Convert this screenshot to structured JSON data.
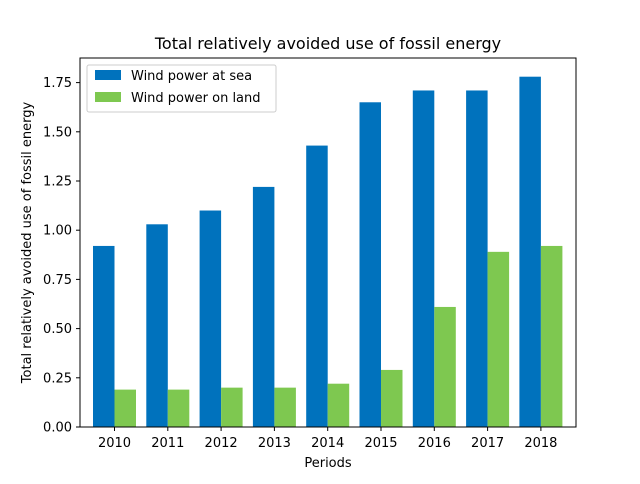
{
  "chart_data": {
    "type": "bar",
    "title": "Total relatively avoided use of fossil energy",
    "xlabel": "Periods",
    "ylabel": "Total relatively avoided use of fossil energy",
    "categories": [
      "2010",
      "2011",
      "2012",
      "2013",
      "2014",
      "2015",
      "2016",
      "2017",
      "2018"
    ],
    "series": [
      {
        "name": "Wind power at sea",
        "color": "#0072BD",
        "values": [
          0.92,
          1.03,
          1.1,
          1.22,
          1.43,
          1.65,
          1.71,
          1.71,
          1.78
        ]
      },
      {
        "name": "Wind power on land",
        "color": "#7EC850",
        "values": [
          0.19,
          0.19,
          0.2,
          0.2,
          0.22,
          0.29,
          0.61,
          0.89,
          0.92
        ]
      }
    ],
    "ylim": [
      0,
      1.875
    ],
    "yticks": [
      "0.00",
      "0.25",
      "0.50",
      "0.75",
      "1.00",
      "1.25",
      "1.50",
      "1.75"
    ],
    "legend_position": "top-left",
    "grid": false
  }
}
